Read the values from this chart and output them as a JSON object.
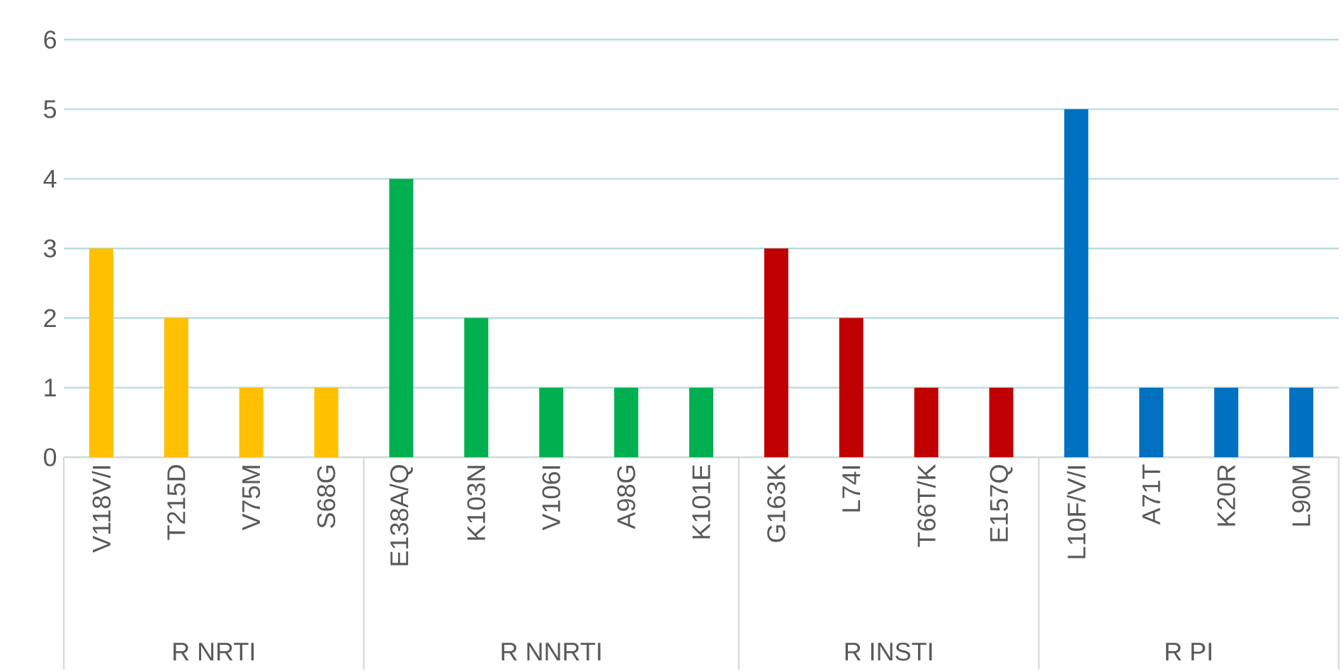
{
  "chart_data": {
    "type": "bar",
    "categories": [
      "V118V/I",
      "T215D",
      "V75M",
      "S68G",
      "E138A/Q",
      "K103N",
      "V106I",
      "A98G",
      "K101E",
      "G163K",
      "L74I",
      "T66T/K",
      "E157Q",
      "L10F/V/I",
      "A71T",
      "K20R",
      "L90M"
    ],
    "values": [
      3,
      2,
      1,
      1,
      4,
      2,
      1,
      1,
      1,
      3,
      2,
      1,
      1,
      5,
      1,
      1,
      1
    ],
    "colors": [
      "#ffc000",
      "#ffc000",
      "#ffc000",
      "#ffc000",
      "#00b050",
      "#00b050",
      "#00b050",
      "#00b050",
      "#00b050",
      "#c00000",
      "#c00000",
      "#c00000",
      "#c00000",
      "#0070c0",
      "#0070c0",
      "#0070c0",
      "#0070c0"
    ],
    "ylim": [
      0,
      6
    ],
    "yticks": [
      0,
      1,
      2,
      3,
      4,
      5,
      6
    ],
    "grid": "y",
    "annotations": [
      "R NRTI",
      "R NNRTI",
      "R INSTI",
      "R PI"
    ]
  }
}
